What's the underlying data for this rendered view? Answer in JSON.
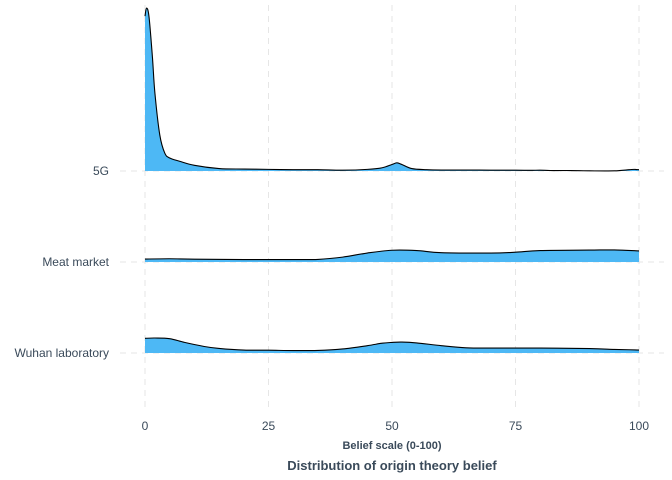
{
  "chart_data": {
    "type": "ridgeline",
    "xlabel": "Belief scale (0-100)",
    "caption": "Distribution of origin theory belief",
    "xlim": [
      0,
      100
    ],
    "x_ticks": [
      0,
      25,
      50,
      75,
      100
    ],
    "grid": true,
    "fill_color": "#4DB8F5",
    "outline_color": "#000000",
    "series": [
      {
        "name": "5G",
        "x": [
          0,
          0.3,
          0.8,
          1.5,
          2,
          3,
          4,
          5,
          7,
          10,
          15,
          20,
          25,
          30,
          35,
          40,
          45,
          48,
          50,
          51,
          52,
          54,
          57,
          60,
          65,
          70,
          75,
          78,
          80,
          82,
          85,
          88,
          90,
          95,
          98,
          99,
          100
        ],
        "density": [
          0.95,
          1.0,
          0.95,
          0.7,
          0.48,
          0.22,
          0.11,
          0.08,
          0.06,
          0.035,
          0.015,
          0.012,
          0.01,
          0.008,
          0.008,
          0.005,
          0.01,
          0.02,
          0.04,
          0.05,
          0.04,
          0.015,
          0.008,
          0.006,
          0.006,
          0.005,
          0.005,
          0.004,
          0.005,
          0.003,
          0.003,
          0.002,
          0.001,
          0.001,
          0.008,
          0.01,
          0.008
        ]
      },
      {
        "name": "Meat market",
        "x": [
          0,
          5,
          10,
          20,
          30,
          35,
          40,
          45,
          50,
          55,
          60,
          70,
          75,
          80,
          90,
          95,
          100
        ],
        "density": [
          0.018,
          0.02,
          0.017,
          0.015,
          0.015,
          0.016,
          0.03,
          0.055,
          0.072,
          0.07,
          0.057,
          0.055,
          0.06,
          0.07,
          0.073,
          0.074,
          0.068
        ]
      },
      {
        "name": "Wuhan laboratory",
        "x": [
          0,
          2,
          5,
          8,
          12,
          15,
          20,
          25,
          30,
          35,
          40,
          45,
          48,
          50,
          52,
          55,
          60,
          65,
          70,
          80,
          90,
          95,
          98,
          100
        ],
        "density": [
          0.09,
          0.092,
          0.088,
          0.065,
          0.04,
          0.028,
          0.018,
          0.017,
          0.015,
          0.016,
          0.025,
          0.045,
          0.06,
          0.065,
          0.067,
          0.062,
          0.045,
          0.032,
          0.03,
          0.03,
          0.027,
          0.022,
          0.02,
          0.018
        ]
      }
    ]
  }
}
